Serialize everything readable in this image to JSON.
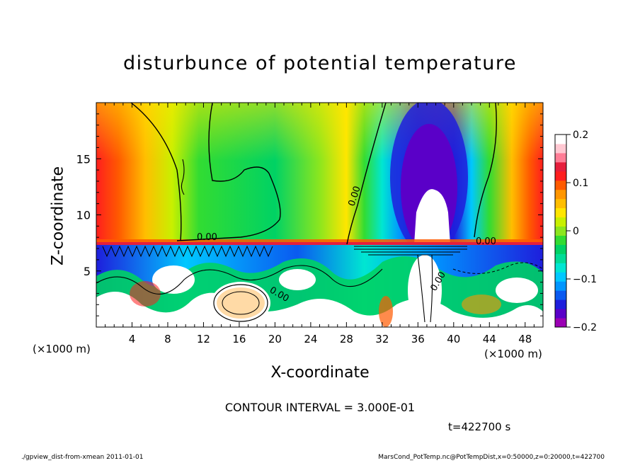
{
  "chart_data": {
    "type": "heatmap",
    "title": "disturbunce of potential temperature",
    "xlabel": "X-coordinate",
    "ylabel": "Z-coordinate",
    "x_unit_label": "(×1000 m)",
    "xlim": [
      0,
      50
    ],
    "ylim": [
      0,
      20
    ],
    "x_ticks": [
      "4",
      "8",
      "12",
      "16",
      "20",
      "24",
      "28",
      "32",
      "36",
      "40",
      "44",
      "48"
    ],
    "y_ticks": [
      "5",
      "10",
      "15"
    ],
    "colorbar": {
      "range": [
        -0.2,
        0.2
      ],
      "tick_labels": [
        "0.2",
        "0.1",
        "0",
        "−0.1",
        "−0.2"
      ],
      "colors": [
        "#ffffff",
        "#9b00b4",
        "#5a00c8",
        "#1e1edc",
        "#0a5af0",
        "#0096ff",
        "#00c8ff",
        "#00e6d2",
        "#00dc96",
        "#00d264",
        "#32dc32",
        "#8ce61e",
        "#c8f000",
        "#ffe600",
        "#ffbe00",
        "#ff9600",
        "#ff5a00",
        "#ff1e1e",
        "#e61e3c",
        "#ff7d96",
        "#ffc8d2"
      ]
    },
    "contour_labels": [
      "0.00",
      "0.00",
      "0.00",
      "0.00",
      "0.00"
    ],
    "contour_interval": "CONTOUR INTERVAL = 3.000E-01",
    "grid": false
  },
  "time_label": "t=422700 s",
  "footer": {
    "left": "./gpview_dist-from-xmean   2011-01-01",
    "right": "MarsCond_PotTemp.nc@PotTempDist,x=0:50000,z=0:20000,t=422700"
  },
  "colors": {
    "warm_edge": "#ff2d14",
    "mid_green": "#00d264",
    "cold_core": "#5a00c8",
    "contour_line": "#000000"
  }
}
